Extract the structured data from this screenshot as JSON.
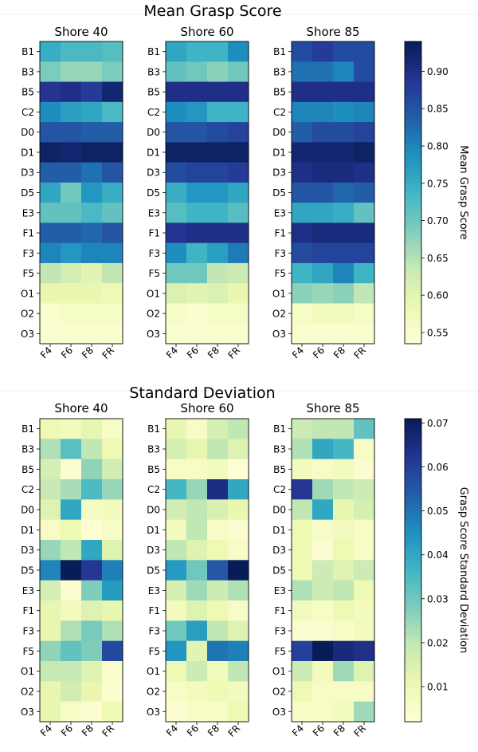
{
  "chart_data": [
    {
      "type": "heatmap",
      "title": "Mean Grasp Score",
      "colorbar": {
        "label": "Mean Grasp Score",
        "min": 0.535,
        "max": 0.94,
        "ticks": [
          "0.55",
          "0.60",
          "0.65",
          "0.70",
          "0.75",
          "0.80",
          "0.85",
          "0.90"
        ],
        "tick_values": [
          0.55,
          0.6,
          0.65,
          0.7,
          0.75,
          0.8,
          0.85,
          0.9
        ],
        "colormap": "YlGnBu"
      },
      "rows": [
        "B1",
        "B3",
        "B5",
        "C2",
        "D0",
        "D1",
        "D3",
        "D5",
        "E3",
        "F1",
        "F3",
        "F5",
        "O1",
        "O2",
        "O3"
      ],
      "columns": [
        "F4",
        "F6",
        "F8",
        "FR"
      ],
      "panels": [
        {
          "title": "Shore 40",
          "values": [
            [
              0.75,
              0.73,
              0.73,
              0.72
            ],
            [
              0.69,
              0.67,
              0.67,
              0.69
            ],
            [
              0.89,
              0.9,
              0.88,
              0.92
            ],
            [
              0.79,
              0.77,
              0.76,
              0.73
            ],
            [
              0.85,
              0.85,
              0.84,
              0.84
            ],
            [
              0.93,
              0.92,
              0.93,
              0.93
            ],
            [
              0.84,
              0.84,
              0.82,
              0.85
            ],
            [
              0.76,
              0.7,
              0.78,
              0.75
            ],
            [
              0.71,
              0.71,
              0.73,
              0.71
            ],
            [
              0.84,
              0.84,
              0.83,
              0.85
            ],
            [
              0.8,
              0.78,
              0.8,
              0.8
            ],
            [
              0.64,
              0.62,
              0.6,
              0.64
            ],
            [
              0.59,
              0.59,
              0.59,
              0.58
            ],
            [
              0.55,
              0.56,
              0.56,
              0.56
            ],
            [
              0.55,
              0.55,
              0.55,
              0.55
            ]
          ]
        },
        {
          "title": "Shore 60",
          "values": [
            [
              0.76,
              0.74,
              0.74,
              0.79
            ],
            [
              0.71,
              0.7,
              0.68,
              0.7
            ],
            [
              0.9,
              0.9,
              0.9,
              0.9
            ],
            [
              0.79,
              0.78,
              0.74,
              0.74
            ],
            [
              0.85,
              0.85,
              0.86,
              0.87
            ],
            [
              0.93,
              0.93,
              0.93,
              0.93
            ],
            [
              0.86,
              0.87,
              0.87,
              0.88
            ],
            [
              0.75,
              0.78,
              0.78,
              0.76
            ],
            [
              0.72,
              0.74,
              0.74,
              0.72
            ],
            [
              0.89,
              0.9,
              0.9,
              0.9
            ],
            [
              0.79,
              0.74,
              0.77,
              0.81
            ],
            [
              0.7,
              0.7,
              0.64,
              0.63
            ],
            [
              0.61,
              0.6,
              0.61,
              0.59
            ],
            [
              0.56,
              0.55,
              0.56,
              0.56
            ],
            [
              0.55,
              0.55,
              0.55,
              0.55
            ]
          ]
        },
        {
          "title": "Shore 85",
          "values": [
            [
              0.86,
              0.88,
              0.86,
              0.86
            ],
            [
              0.82,
              0.82,
              0.8,
              0.86
            ],
            [
              0.9,
              0.9,
              0.9,
              0.9
            ],
            [
              0.8,
              0.8,
              0.79,
              0.8
            ],
            [
              0.84,
              0.86,
              0.86,
              0.87
            ],
            [
              0.92,
              0.92,
              0.92,
              0.93
            ],
            [
              0.9,
              0.91,
              0.91,
              0.9
            ],
            [
              0.85,
              0.85,
              0.83,
              0.84
            ],
            [
              0.76,
              0.76,
              0.75,
              0.71
            ],
            [
              0.9,
              0.91,
              0.91,
              0.91
            ],
            [
              0.86,
              0.87,
              0.87,
              0.87
            ],
            [
              0.74,
              0.76,
              0.8,
              0.74
            ],
            [
              0.68,
              0.67,
              0.68,
              0.64
            ],
            [
              0.56,
              0.57,
              0.57,
              0.56
            ],
            [
              0.55,
              0.55,
              0.55,
              0.55
            ]
          ]
        }
      ]
    },
    {
      "type": "heatmap",
      "title": "Standard Deviation",
      "colorbar": {
        "label": "Grasp Score Standard Deviation",
        "min": 0.002,
        "max": 0.071,
        "ticks": [
          "0.01",
          "0.02",
          "0.03",
          "0.04",
          "0.05",
          "0.06",
          "0.07"
        ],
        "tick_values": [
          0.01,
          0.02,
          0.03,
          0.04,
          0.05,
          0.06,
          0.07
        ],
        "colormap": "YlGnBu"
      },
      "rows": [
        "B1",
        "B3",
        "B5",
        "C2",
        "D0",
        "D1",
        "D3",
        "D5",
        "E3",
        "F1",
        "F3",
        "F5",
        "O1",
        "O2",
        "O3"
      ],
      "columns": [
        "F4",
        "F6",
        "F8",
        "FR"
      ],
      "panels": [
        {
          "title": "Shore 40",
          "values": [
            [
              0.01,
              0.008,
              0.012,
              0.006
            ],
            [
              0.022,
              0.033,
              0.02,
              0.01
            ],
            [
              0.016,
              0.004,
              0.026,
              0.017
            ],
            [
              0.019,
              0.023,
              0.035,
              0.025
            ],
            [
              0.014,
              0.04,
              0.007,
              0.008
            ],
            [
              0.006,
              0.01,
              0.003,
              0.006
            ],
            [
              0.025,
              0.02,
              0.04,
              0.014
            ],
            [
              0.047,
              0.071,
              0.062,
              0.048
            ],
            [
              0.016,
              0.004,
              0.028,
              0.043
            ],
            [
              0.012,
              0.008,
              0.014,
              0.012
            ],
            [
              0.011,
              0.022,
              0.029,
              0.022
            ],
            [
              0.026,
              0.032,
              0.028,
              0.058
            ],
            [
              0.019,
              0.019,
              0.014,
              0.005
            ],
            [
              0.012,
              0.017,
              0.011,
              0.004
            ],
            [
              0.012,
              0.006,
              0.004,
              0.01
            ]
          ]
        },
        {
          "title": "Shore 60",
          "values": [
            [
              0.012,
              0.006,
              0.016,
              0.02
            ],
            [
              0.016,
              0.012,
              0.02,
              0.014
            ],
            [
              0.006,
              0.006,
              0.008,
              0.003
            ],
            [
              0.036,
              0.025,
              0.065,
              0.04
            ],
            [
              0.017,
              0.02,
              0.015,
              0.011
            ],
            [
              0.008,
              0.02,
              0.006,
              0.004
            ],
            [
              0.02,
              0.014,
              0.01,
              0.006
            ],
            [
              0.043,
              0.03,
              0.055,
              0.071
            ],
            [
              0.016,
              0.024,
              0.018,
              0.022
            ],
            [
              0.008,
              0.014,
              0.01,
              0.006
            ],
            [
              0.03,
              0.042,
              0.02,
              0.014
            ],
            [
              0.044,
              0.013,
              0.05,
              0.048
            ],
            [
              0.01,
              0.018,
              0.008,
              0.02
            ],
            [
              0.006,
              0.008,
              0.01,
              0.008
            ],
            [
              0.004,
              0.006,
              0.006,
              0.01
            ]
          ]
        },
        {
          "title": "Shore 85",
          "values": [
            [
              0.018,
              0.02,
              0.02,
              0.032
            ],
            [
              0.022,
              0.04,
              0.036,
              0.006
            ],
            [
              0.008,
              0.006,
              0.008,
              0.004
            ],
            [
              0.062,
              0.024,
              0.02,
              0.018
            ],
            [
              0.02,
              0.04,
              0.012,
              0.016
            ],
            [
              0.01,
              0.006,
              0.008,
              0.006
            ],
            [
              0.01,
              0.004,
              0.01,
              0.006
            ],
            [
              0.01,
              0.018,
              0.014,
              0.018
            ],
            [
              0.022,
              0.018,
              0.02,
              0.01
            ],
            [
              0.008,
              0.006,
              0.01,
              0.008
            ],
            [
              0.004,
              0.004,
              0.006,
              0.008
            ],
            [
              0.06,
              0.071,
              0.066,
              0.064
            ],
            [
              0.018,
              0.008,
              0.024,
              0.014
            ],
            [
              0.01,
              0.006,
              0.006,
              0.006
            ],
            [
              0.006,
              0.006,
              0.008,
              0.024
            ]
          ]
        }
      ]
    }
  ]
}
